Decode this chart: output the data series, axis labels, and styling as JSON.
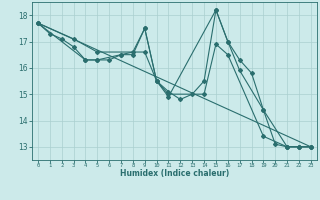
{
  "xlabel": "Humidex (Indice chaleur)",
  "background_color": "#cceaea",
  "grid_color": "#aacfcf",
  "line_color": "#2a6e6e",
  "xlim": [
    -0.5,
    23.5
  ],
  "ylim": [
    12.5,
    18.5
  ],
  "xticks": [
    0,
    1,
    2,
    3,
    4,
    5,
    6,
    7,
    8,
    9,
    10,
    11,
    12,
    13,
    14,
    15,
    16,
    17,
    18,
    19,
    20,
    21,
    22,
    23
  ],
  "yticks": [
    13,
    14,
    15,
    16,
    17,
    18
  ],
  "series1": [
    [
      0,
      17.7
    ],
    [
      1,
      17.3
    ],
    [
      2,
      17.1
    ],
    [
      3,
      16.8
    ],
    [
      4,
      16.3
    ],
    [
      5,
      16.3
    ],
    [
      6,
      16.3
    ],
    [
      7,
      16.5
    ],
    [
      8,
      16.5
    ],
    [
      9,
      17.5
    ],
    [
      10,
      15.5
    ],
    [
      11,
      15.1
    ],
    [
      12,
      14.8
    ],
    [
      13,
      15.0
    ],
    [
      14,
      15.5
    ],
    [
      15,
      18.2
    ],
    [
      16,
      17.0
    ],
    [
      17,
      16.3
    ],
    [
      18,
      15.8
    ],
    [
      19,
      14.4
    ],
    [
      20,
      13.1
    ],
    [
      21,
      13.0
    ],
    [
      22,
      13.0
    ],
    [
      23,
      13.0
    ]
  ],
  "series2": [
    [
      0,
      17.7
    ],
    [
      3,
      17.1
    ],
    [
      5,
      16.6
    ],
    [
      9,
      16.6
    ],
    [
      10,
      15.5
    ],
    [
      11,
      15.0
    ],
    [
      14,
      15.0
    ],
    [
      15,
      16.9
    ],
    [
      16,
      16.5
    ],
    [
      19,
      13.4
    ],
    [
      21,
      13.0
    ],
    [
      22,
      13.0
    ],
    [
      23,
      13.0
    ]
  ],
  "series3": [
    [
      0,
      17.7
    ],
    [
      4,
      16.3
    ],
    [
      5,
      16.3
    ],
    [
      7,
      16.5
    ],
    [
      8,
      16.6
    ],
    [
      9,
      17.5
    ],
    [
      10,
      15.5
    ],
    [
      11,
      14.9
    ],
    [
      15,
      18.2
    ],
    [
      16,
      17.0
    ],
    [
      17,
      15.9
    ],
    [
      19,
      14.4
    ],
    [
      21,
      13.0
    ],
    [
      22,
      13.0
    ],
    [
      23,
      13.0
    ]
  ],
  "series4": [
    [
      0,
      17.7
    ],
    [
      23,
      13.0
    ]
  ]
}
